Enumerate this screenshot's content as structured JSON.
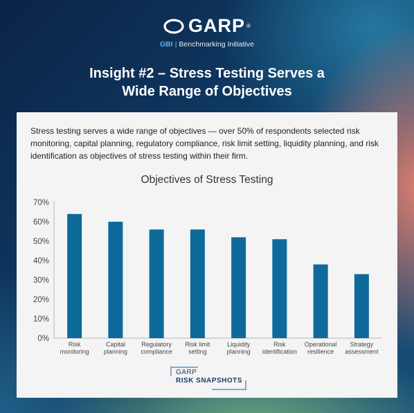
{
  "header": {
    "logo_text": "GARP",
    "logo_registered": "®",
    "sub_gbi": "GBI",
    "sub_sep": "|",
    "sub_text": "Benchmarking Initiative",
    "headline_line1": "Insight #2 – Stress Testing Serves a",
    "headline_line2": "Wide Range of Objectives"
  },
  "intro_text": "Stress testing serves a wide range of objectives — over 50% of respondents selected risk monitoring, capital planning, regulatory compliance, risk limit setting, liquidity planning, and risk identification as objectives of stress testing within their firm.",
  "chart_data": {
    "type": "bar",
    "title": "Objectives of Stress Testing",
    "xlabel": "",
    "ylabel": "",
    "categories": [
      [
        "Risk",
        "monitoring"
      ],
      [
        "Capital",
        "planning"
      ],
      [
        "Regulatory",
        "compliance"
      ],
      [
        "Risk limit",
        "setting"
      ],
      [
        "Liquidity",
        "planning"
      ],
      [
        "Risk",
        "identification"
      ],
      [
        "Operational",
        "resilience"
      ],
      [
        "Strategy",
        "assessment"
      ]
    ],
    "values": [
      64,
      60,
      56,
      56,
      52,
      51,
      38,
      33
    ],
    "ylim": [
      0,
      70
    ],
    "yticks": [
      "0%",
      "10%",
      "20%",
      "30%",
      "40%",
      "50%",
      "60%",
      "70%"
    ],
    "grid": false,
    "bar_color": "#0e6a9a",
    "axis_color": "#b8b8b8"
  },
  "footer": {
    "line1": "GARP",
    "line2": "RISK SNAPSHOTS"
  }
}
